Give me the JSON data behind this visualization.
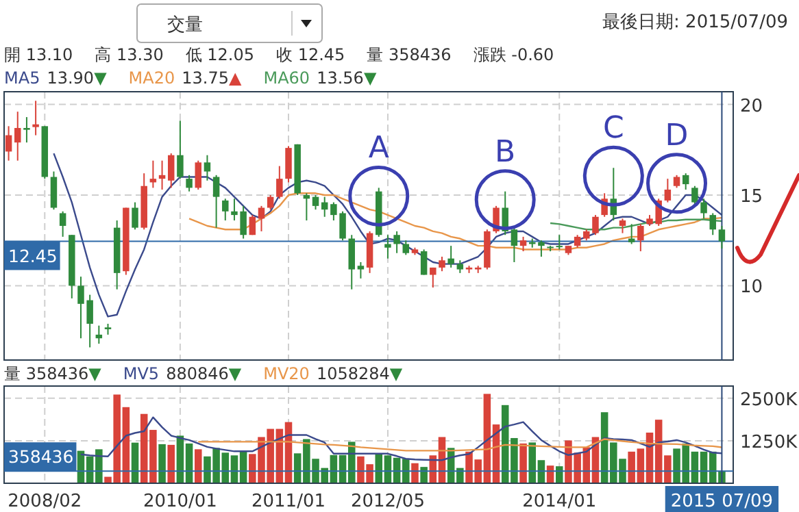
{
  "chart_data": [
    {
      "type": "candlestick",
      "subtitle": "最後日期: 2015/07/09",
      "categories": [
        null,
        null,
        null,
        null,
        "2008/02",
        null,
        null,
        null,
        null,
        null,
        null,
        null,
        null,
        null,
        null,
        null,
        null,
        null,
        null,
        "2010/01",
        null,
        null,
        null,
        null,
        null,
        null,
        null,
        null,
        null,
        null,
        null,
        "2011/01",
        null,
        null,
        null,
        null,
        null,
        null,
        null,
        null,
        null,
        null,
        "2012/05",
        null,
        null,
        null,
        null,
        null,
        null,
        null,
        null,
        null,
        null,
        null,
        null,
        null,
        null,
        null,
        null,
        null,
        null,
        "2014/01",
        null,
        null,
        null,
        null,
        null,
        null,
        null,
        null,
        null,
        null,
        null,
        null,
        null,
        null,
        null,
        null,
        null,
        "2015 07/09"
      ],
      "ohlc": [
        [
          17.4,
          18.8,
          16.9,
          18.3
        ],
        [
          17.9,
          19.6,
          16.9,
          18.7
        ],
        [
          18.7,
          19.3,
          17.9,
          18.6
        ],
        [
          18.75,
          20.2,
          18.3,
          18.9
        ],
        [
          18.8,
          18.8,
          15.9,
          16.0
        ],
        [
          16.0,
          16.3,
          14.2,
          14.3
        ],
        [
          14.0,
          14.1,
          12.7,
          13.3
        ],
        [
          12.8,
          12.8,
          9.3,
          10.0
        ],
        [
          10.0,
          10.5,
          7.1,
          9.0
        ],
        [
          9.2,
          9.5,
          6.6,
          7.9
        ],
        [
          7.3,
          7.8,
          6.8,
          7.1
        ],
        [
          7.7,
          7.9,
          7.3,
          7.6
        ],
        [
          13.2,
          13.6,
          9.8,
          10.7
        ],
        [
          10.8,
          14.3,
          10.6,
          14.3
        ],
        [
          14.3,
          14.6,
          13.1,
          13.2
        ],
        [
          13.2,
          16.2,
          13.1,
          15.5
        ],
        [
          15.7,
          16.9,
          15.4,
          15.9
        ],
        [
          15.9,
          16.9,
          15.3,
          16.1
        ],
        [
          15.8,
          17.3,
          15.4,
          17.2
        ],
        [
          17.2,
          19.1,
          15.9,
          16.0
        ],
        [
          15.9,
          16.1,
          15.2,
          15.4
        ],
        [
          15.4,
          16.9,
          15.3,
          16.8
        ],
        [
          16.8,
          17.2,
          15.8,
          16.3
        ],
        [
          16.0,
          16.1,
          13.2,
          14.9
        ],
        [
          14.7,
          14.8,
          13.6,
          14.1
        ],
        [
          14.1,
          14.8,
          13.6,
          13.9
        ],
        [
          14.1,
          14.4,
          12.6,
          12.8
        ],
        [
          12.8,
          13.9,
          12.8,
          13.8
        ],
        [
          13.7,
          14.4,
          13.0,
          14.3
        ],
        [
          14.3,
          15.0,
          14.2,
          14.9
        ],
        [
          14.9,
          16.6,
          14.8,
          15.9
        ],
        [
          15.9,
          17.7,
          15.7,
          17.6
        ],
        [
          17.8,
          17.8,
          15.0,
          15.1
        ],
        [
          15.0,
          15.1,
          13.6,
          14.8
        ],
        [
          14.9,
          15.0,
          14.2,
          14.4
        ],
        [
          14.6,
          14.9,
          13.8,
          14.2
        ],
        [
          14.5,
          14.6,
          13.6,
          13.9
        ],
        [
          14.0,
          14.1,
          12.5,
          12.6
        ],
        [
          12.6,
          12.8,
          9.8,
          10.9
        ],
        [
          11.1,
          11.3,
          10.4,
          10.9
        ],
        [
          11.0,
          13.0,
          10.7,
          12.9
        ],
        [
          15.2,
          15.4,
          12.7,
          12.8
        ],
        [
          12.3,
          12.8,
          11.5,
          12.1
        ],
        [
          12.8,
          13.0,
          11.8,
          12.3
        ],
        [
          12.3,
          12.5,
          11.7,
          11.8
        ],
        [
          11.8,
          12.1,
          11.7,
          12.0
        ],
        [
          11.9,
          12.0,
          10.6,
          10.6
        ],
        [
          10.6,
          11.0,
          9.9,
          11.0
        ],
        [
          11.0,
          11.6,
          10.8,
          11.4
        ],
        [
          11.5,
          12.2,
          11.0,
          11.2
        ],
        [
          11.2,
          11.4,
          10.7,
          10.9
        ],
        [
          10.9,
          11.1,
          10.7,
          11.0
        ],
        [
          10.9,
          11.1,
          10.7,
          11.0
        ],
        [
          11.0,
          13.1,
          10.9,
          13.0
        ],
        [
          13.0,
          14.4,
          12.9,
          14.3
        ],
        [
          14.3,
          15.2,
          12.8,
          13.0
        ],
        [
          13.1,
          13.3,
          11.3,
          12.2
        ],
        [
          12.2,
          12.7,
          11.9,
          12.5
        ],
        [
          12.4,
          12.6,
          12.1,
          12.3
        ],
        [
          12.4,
          12.5,
          11.6,
          12.2
        ],
        [
          12.15,
          12.2,
          11.9,
          12.1
        ],
        [
          12.2,
          12.8,
          12.0,
          12.15
        ],
        [
          11.8,
          12.2,
          11.7,
          12.2
        ],
        [
          12.2,
          12.8,
          12.1,
          12.7
        ],
        [
          12.6,
          13.1,
          12.5,
          13.0
        ],
        [
          12.9,
          13.9,
          12.8,
          13.8
        ],
        [
          13.9,
          15.1,
          13.8,
          14.8
        ],
        [
          14.8,
          16.5,
          13.6,
          13.9
        ],
        [
          13.3,
          13.7,
          12.9,
          13.6
        ],
        [
          12.6,
          13.4,
          12.3,
          12.4
        ],
        [
          12.5,
          13.4,
          11.9,
          13.3
        ],
        [
          13.4,
          13.9,
          13.3,
          13.7
        ],
        [
          13.4,
          14.8,
          13.3,
          14.7
        ],
        [
          14.7,
          15.9,
          14.6,
          15.3
        ],
        [
          15.5,
          16.1,
          15.4,
          16.0
        ],
        [
          16.1,
          16.2,
          15.3,
          15.6
        ],
        [
          15.4,
          15.5,
          14.5,
          14.6
        ],
        [
          14.6,
          14.8,
          13.7,
          14.0
        ],
        [
          13.9,
          14.0,
          12.8,
          13.1
        ],
        [
          13.1,
          13.3,
          12.05,
          12.45
        ]
      ],
      "colors": [
        "#d9433a",
        "#d9433a",
        "#2f8a3c",
        "#d9433a",
        "#2f8a3c",
        "#2f8a3c",
        "#2f8a3c",
        "#2f8a3c",
        "#2f8a3c",
        "#2f8a3c",
        "#2f8a3c",
        "#2f8a3c",
        "#2f8a3c",
        "#d9433a",
        "#2f8a3c",
        "#d9433a",
        "#d9433a",
        "#d9433a",
        "#d9433a",
        "#2f8a3c",
        "#2f8a3c",
        "#d9433a",
        "#2f8a3c",
        "#2f8a3c",
        "#2f8a3c",
        "#2f8a3c",
        "#2f8a3c",
        "#d9433a",
        "#d9433a",
        "#d9433a",
        "#d9433a",
        "#d9433a",
        "#2f8a3c",
        "#2f8a3c",
        "#2f8a3c",
        "#2f8a3c",
        "#2f8a3c",
        "#2f8a3c",
        "#2f8a3c",
        "#2f8a3c",
        "#d9433a",
        "#2f8a3c",
        "#2f8a3c",
        "#2f8a3c",
        "#2f8a3c",
        "#d9433a",
        "#2f8a3c",
        "#d9433a",
        "#d9433a",
        "#2f8a3c",
        "#2f8a3c",
        "#d9433a",
        "#d9433a",
        "#d9433a",
        "#d9433a",
        "#2f8a3c",
        "#2f8a3c",
        "#d9433a",
        "#2f8a3c",
        "#2f8a3c",
        "#2f8a3c",
        "#2f8a3c",
        "#d9433a",
        "#d9433a",
        "#d9433a",
        "#d9433a",
        "#d9433a",
        "#2f8a3c",
        "#d9433a",
        "#2f8a3c",
        "#d9433a",
        "#d9433a",
        "#d9433a",
        "#d9433a",
        "#d9433a",
        "#2f8a3c",
        "#2f8a3c",
        "#2f8a3c",
        "#2f8a3c",
        "#2f8a3c"
      ],
      "series": [
        {
          "name": "MA5",
          "type": "line",
          "color": "#3b4a8c",
          "values": [
            null,
            null,
            null,
            null,
            null,
            17.3,
            16.0,
            14.6,
            12.8,
            11.0,
            9.5,
            8.3,
            8.4,
            9.7,
            10.9,
            12.0,
            13.5,
            14.9,
            15.5,
            16.0,
            16.0,
            16.0,
            16.0,
            15.7,
            15.4,
            14.9,
            14.4,
            13.9,
            13.7,
            14.1,
            15.0,
            15.4,
            15.7,
            15.8,
            15.7,
            15.5,
            15.0,
            14.5,
            13.8,
            13.0,
            12.3,
            12.4,
            12.6,
            12.5,
            12.2,
            11.9,
            11.6,
            11.3,
            11.2,
            11.2,
            11.2,
            11.4,
            11.6,
            12.1,
            12.7,
            12.9,
            13.0,
            13.0,
            12.7,
            12.4,
            12.3,
            12.3,
            12.3,
            12.5,
            12.7,
            12.9,
            13.3,
            13.7,
            13.8,
            13.8,
            13.6,
            13.4,
            13.6,
            13.8,
            14.4,
            15.0,
            15.0,
            14.7,
            14.3,
            13.9
          ]
        },
        {
          "name": "MA20",
          "type": "line",
          "color": "#e8964a",
          "values": [
            null,
            null,
            null,
            null,
            null,
            null,
            null,
            null,
            null,
            null,
            null,
            null,
            null,
            null,
            null,
            null,
            null,
            null,
            null,
            null,
            13.7,
            13.5,
            13.3,
            13.2,
            13.1,
            13.1,
            13.1,
            13.4,
            13.7,
            14.0,
            14.4,
            15.0,
            15.1,
            15.1,
            15.1,
            15.0,
            15.0,
            14.8,
            14.6,
            14.4,
            14.2,
            14.1,
            13.9,
            13.7,
            13.5,
            13.3,
            13.2,
            13.0,
            12.9,
            12.7,
            12.6,
            12.4,
            12.2,
            12.2,
            12.1,
            12.1,
            12.1,
            12.0,
            12.0,
            12.0,
            12.0,
            12.0,
            12.0,
            12.1,
            12.1,
            12.2,
            12.3,
            12.5,
            12.6,
            12.7,
            12.7,
            12.9,
            13.1,
            13.2,
            13.3,
            13.4,
            13.5,
            13.7,
            13.7,
            13.75
          ]
        },
        {
          "name": "MA60",
          "type": "line",
          "color": "#4a9a5a",
          "values": [
            null,
            null,
            null,
            null,
            null,
            null,
            null,
            null,
            null,
            null,
            null,
            null,
            null,
            null,
            null,
            null,
            null,
            null,
            null,
            null,
            null,
            null,
            null,
            null,
            null,
            null,
            null,
            null,
            null,
            null,
            null,
            null,
            null,
            null,
            null,
            null,
            null,
            null,
            null,
            null,
            null,
            null,
            null,
            null,
            null,
            null,
            null,
            null,
            null,
            null,
            null,
            null,
            null,
            null,
            null,
            null,
            null,
            null,
            null,
            null,
            13.45,
            13.4,
            13.3,
            13.2,
            13.1,
            13.1,
            13.1,
            13.2,
            13.2,
            13.3,
            13.4,
            13.5,
            13.5,
            13.6,
            13.6,
            13.65,
            13.65,
            13.65,
            13.6,
            13.56
          ]
        }
      ],
      "ylim": [
        5.9,
        20.7
      ],
      "yticks": [
        10,
        15,
        20
      ],
      "grid": true,
      "tick_labels": "y",
      "legend": "top left",
      "ref_lines": [
        {
          "axis": "y",
          "value": 12.45,
          "label": "12.45",
          "color": "#2f6aa8"
        },
        {
          "axis": "x",
          "value": "2015 07/09",
          "color": "#2c4a7a"
        }
      ],
      "annotations": [
        "交量",
        "開 13.10",
        "高 13.30",
        "低 12.05",
        "收 12.45",
        "量 358436",
        "漲跌 -0.60",
        "13.90▼",
        "13.75▲",
        "13.56▼",
        {
          "text": "A",
          "y": 15.4
        },
        {
          "text": "B",
          "y": 15.2
        },
        {
          "text": "C",
          "y": 16.5
        },
        {
          "text": "D",
          "y": 16.1
        }
      ]
    },
    {
      "type": "bar",
      "categories": [
        null,
        null,
        null,
        null,
        "2008/02",
        null,
        null,
        null,
        null,
        null,
        null,
        null,
        null,
        null,
        null,
        null,
        null,
        null,
        null,
        "2010/01",
        null,
        null,
        null,
        null,
        null,
        null,
        null,
        null,
        null,
        null,
        null,
        "2011/01",
        null,
        null,
        null,
        null,
        null,
        null,
        null,
        null,
        null,
        null,
        "2012/05",
        null,
        null,
        null,
        null,
        null,
        null,
        null,
        null,
        null,
        null,
        null,
        null,
        null,
        null,
        null,
        null,
        null,
        null,
        "2014/01",
        null,
        null,
        null,
        null,
        null,
        null,
        null,
        null,
        null,
        null,
        null,
        null,
        null,
        null,
        null,
        null,
        null,
        "2015 07/09"
      ],
      "series": [
        {
          "type": "bar",
          "values": [
            null,
            null,
            null,
            null,
            null,
            null,
            null,
            null,
            955,
            790,
            1000,
            190,
            2610,
            2240,
            1195,
            2040,
            1570,
            1150,
            1130,
            1400,
            1170,
            1000,
            790,
            1040,
            900,
            820,
            955,
            860,
            1360,
            1600,
            1600,
            1800,
            880,
            1300,
            720,
            450,
            830,
            830,
            1220,
            790,
            560,
            880,
            820,
            750,
            720,
            590,
            480,
            820,
            1360,
            1040,
            450,
            930,
            700,
            2630,
            1730,
            2300,
            1330,
            1170,
            1200,
            680,
            520,
            500,
            1260,
            900,
            1060,
            1360,
            2090,
            1200,
            720,
            930,
            1020,
            1490,
            1870,
            820,
            1020,
            1170,
            930,
            930,
            930,
            358.436
          ],
          "colors": [
            null,
            null,
            null,
            null,
            null,
            null,
            null,
            null,
            "#2f8a3c",
            "#2f8a3c",
            "#2f8a3c",
            "#d9433a",
            "#d9433a",
            "#d9433a",
            "#2f8a3c",
            "#d9433a",
            "#d9433a",
            "#2f8a3c",
            "#d9433a",
            "#2f8a3c",
            "#2f8a3c",
            "#d9433a",
            "#2f8a3c",
            "#2f8a3c",
            "#2f8a3c",
            "#2f8a3c",
            "#2f8a3c",
            "#d9433a",
            "#d9433a",
            "#d9433a",
            "#d9433a",
            "#d9433a",
            "#2f8a3c",
            "#2f8a3c",
            "#2f8a3c",
            "#2f8a3c",
            "#2f8a3c",
            "#2f8a3c",
            "#2f8a3c",
            "#d9433a",
            "#d9433a",
            "#2f8a3c",
            "#2f8a3c",
            "#2f8a3c",
            "#2f8a3c",
            "#d9433a",
            "#2f8a3c",
            "#d9433a",
            "#d9433a",
            "#2f8a3c",
            "#2f8a3c",
            "#d9433a",
            "#d9433a",
            "#d9433a",
            "#d9433a",
            "#2f8a3c",
            "#2f8a3c",
            "#d9433a",
            "#2f8a3c",
            "#2f8a3c",
            "#d9433a",
            "#2f8a3c",
            "#d9433a",
            "#d9433a",
            "#d9433a",
            "#d9433a",
            "#2f8a3c",
            "#2f8a3c",
            "#2f8a3c",
            "#d9433a",
            "#d9433a",
            "#d9433a",
            "#d9433a",
            "#d9433a",
            "#2f8a3c",
            "#2f8a3c",
            "#2f8a3c",
            "#2f8a3c",
            "#2f8a3c",
            "#2f8a3c"
          ]
        },
        {
          "name": "MV5",
          "type": "line",
          "color": "#3b4a8c",
          "values": [
            null,
            null,
            null,
            null,
            null,
            null,
            null,
            null,
            850,
            820,
            800,
            790,
            1100,
            1400,
            1480,
            1530,
            1940,
            1650,
            1400,
            1330,
            1270,
            1170,
            1070,
            1020,
            980,
            940,
            940,
            940,
            1070,
            1200,
            1310,
            1420,
            1420,
            1420,
            1300,
            1200,
            870,
            870,
            870,
            870,
            870,
            870,
            870,
            800,
            720,
            700,
            690,
            685,
            680,
            760,
            820,
            860,
            1060,
            1270,
            1470,
            1670,
            1730,
            1800,
            1530,
            1270,
            1100,
            940,
            830,
            880,
            930,
            1130,
            1330,
            1300,
            1290,
            1270,
            1170,
            1070,
            1200,
            1230,
            1270,
            1200,
            1100,
            990,
            900,
            880.846
          ]
        },
        {
          "name": "MV20",
          "type": "line",
          "color": "#e8964a",
          "values": [
            null,
            null,
            null,
            null,
            null,
            null,
            null,
            null,
            null,
            null,
            null,
            null,
            null,
            null,
            null,
            null,
            null,
            null,
            null,
            null,
            null,
            1220,
            1220,
            1220,
            1220,
            1220,
            1220,
            1220,
            1220,
            1220,
            1220,
            1220,
            1200,
            1180,
            1160,
            1140,
            1130,
            1110,
            1090,
            1060,
            1040,
            1020,
            1000,
            980,
            960,
            960,
            960,
            960,
            960,
            960,
            970,
            980,
            990,
            1000,
            1070,
            1130,
            1120,
            1110,
            1100,
            1090,
            1080,
            1070,
            1060,
            1060,
            1060,
            1180,
            1300,
            1270,
            1240,
            1210,
            1190,
            1170,
            1160,
            1155,
            1150,
            1130,
            1110,
            1100,
            1090,
            1058.284
          ]
        }
      ],
      "ylim": [
        0,
        2860
      ],
      "yticks": [
        {
          "value": 1250,
          "label": "1250K"
        },
        {
          "value": 2500,
          "label": "2500K"
        }
      ],
      "grid": true,
      "legend": "top left",
      "ref_lines": [
        {
          "axis": "y",
          "value": 358.436,
          "label": "358436",
          "color": "#2f6aa8"
        },
        {
          "axis": "x",
          "value": "2015 07/09",
          "color": "#2c4a7a"
        }
      ],
      "annotations": [
        "量 358436▼",
        "880846▼",
        "1058284▼"
      ]
    }
  ]
}
